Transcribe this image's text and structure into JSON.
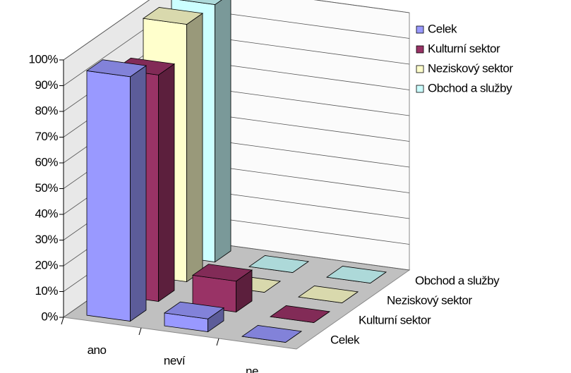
{
  "chart_data": {
    "type": "bar3d",
    "categories": [
      "ano",
      "neví",
      "ne"
    ],
    "series": [
      {
        "name": "Celek",
        "color": "#9999ff",
        "values": [
          95,
          5,
          0
        ]
      },
      {
        "name": "Kulturní sektor",
        "color": "#993366",
        "values": [
          88,
          12,
          0
        ]
      },
      {
        "name": "Neziskový sektor",
        "color": "#ffffcc",
        "values": [
          100,
          0,
          0
        ]
      },
      {
        "name": "Obchod a služby",
        "color": "#ccffff",
        "values": [
          100,
          0,
          0
        ]
      }
    ],
    "ylim": [
      0,
      100
    ],
    "yticks": [
      {
        "value": 0,
        "label": "0%"
      },
      {
        "value": 10,
        "label": "10%"
      },
      {
        "value": 20,
        "label": "20%"
      },
      {
        "value": 30,
        "label": "30%"
      },
      {
        "value": 40,
        "label": "40%"
      },
      {
        "value": 50,
        "label": "50%"
      },
      {
        "value": 60,
        "label": "60%"
      },
      {
        "value": 70,
        "label": "70%"
      },
      {
        "value": 80,
        "label": "80%"
      },
      {
        "value": 90,
        "label": "90%"
      },
      {
        "value": 100,
        "label": "100%"
      }
    ],
    "grid": true,
    "legend": "top-right"
  }
}
